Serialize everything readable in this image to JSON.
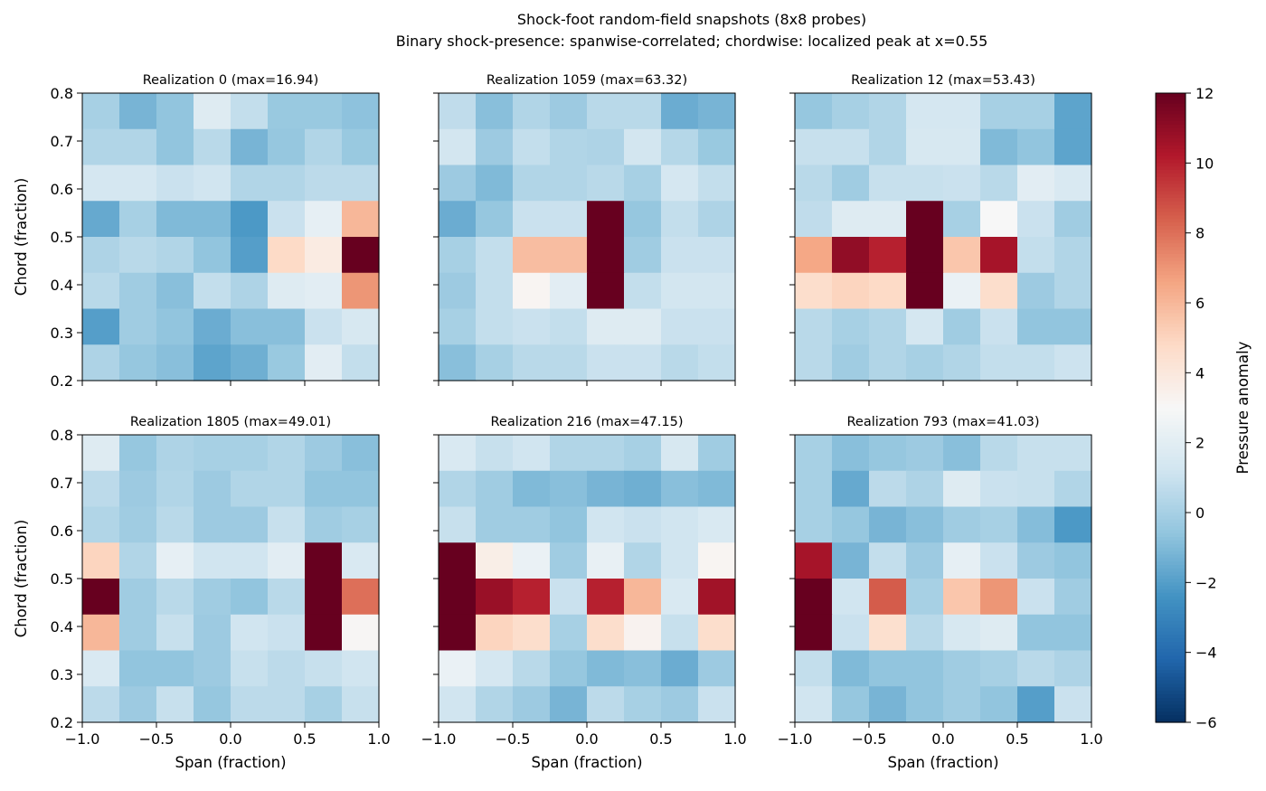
{
  "figure": {
    "title": "Shock-foot random-field snapshots (8x8 probes)",
    "subtitle": "Binary shock-presence: spanwise-correlated; chordwise: localized peak at x=0.55"
  },
  "chart_data": {
    "type": "heatmap",
    "colormap": "RdBu_r",
    "vmin": -6,
    "vmax": 12,
    "colorbar": {
      "label": "Pressure anomaly",
      "ticks": [
        -6,
        -4,
        -2,
        0,
        2,
        4,
        6,
        8,
        10,
        12
      ]
    },
    "xlim": [
      -1.0,
      1.0
    ],
    "ylim": [
      0.2,
      0.8
    ],
    "xticks": [
      -1.0,
      -0.5,
      0.0,
      0.5,
      1.0
    ],
    "yticks": [
      0.2,
      0.3,
      0.4,
      0.5,
      0.6,
      0.7,
      0.8
    ],
    "xticklabels": [
      "−1.0",
      "−0.5",
      "0.0",
      "0.5",
      "1.0"
    ],
    "yticklabels": [
      "0.2",
      "0.3",
      "0.4",
      "0.5",
      "0.6",
      "0.7",
      "0.8"
    ],
    "xlabel": "Span (fraction)",
    "ylabel": "Chord (fraction)",
    "grid_rows_top_to_bottom": true,
    "panels": [
      {
        "title": "Realization 0 (max=16.94)",
        "values": [
          [
            0.0,
            -1.2,
            -0.6,
            1.8,
            0.8,
            -0.4,
            -0.4,
            -0.7
          ],
          [
            0.3,
            0.3,
            -0.6,
            0.5,
            -1.2,
            -0.5,
            0.3,
            -0.4
          ],
          [
            1.4,
            1.4,
            1.0,
            1.2,
            0.3,
            0.3,
            0.6,
            0.6
          ],
          [
            -1.6,
            0.0,
            -1.0,
            -1.0,
            -2.2,
            1.0,
            2.2,
            6.0
          ],
          [
            0.2,
            0.5,
            0.3,
            -0.6,
            -2.0,
            4.8,
            3.8,
            16.94
          ],
          [
            0.5,
            -0.2,
            -0.8,
            0.8,
            0.2,
            1.8,
            2.0,
            7.0
          ],
          [
            -2.0,
            -0.2,
            -0.6,
            -1.5,
            -0.8,
            -0.8,
            1.0,
            1.5
          ],
          [
            0.2,
            -0.5,
            -0.8,
            -1.8,
            -1.4,
            -0.4,
            2.0,
            0.8
          ]
        ]
      },
      {
        "title": "Realization 1059 (max=63.32)",
        "values": [
          [
            0.7,
            -0.8,
            0.3,
            -0.3,
            0.5,
            0.5,
            -1.5,
            -1.2
          ],
          [
            1.3,
            -0.3,
            0.8,
            0.3,
            0.2,
            1.3,
            0.4,
            -0.4
          ],
          [
            -0.3,
            -1.0,
            0.3,
            0.3,
            0.5,
            0.0,
            1.4,
            0.8
          ],
          [
            -1.5,
            -0.5,
            1.0,
            1.0,
            63.32,
            -0.5,
            0.8,
            0.2
          ],
          [
            0.0,
            0.8,
            5.8,
            5.8,
            50.0,
            -0.2,
            1.0,
            1.0
          ],
          [
            -0.3,
            0.8,
            3.2,
            2.0,
            40.0,
            0.8,
            1.3,
            1.3
          ],
          [
            0.0,
            0.8,
            1.0,
            0.8,
            1.8,
            1.8,
            1.0,
            1.0
          ],
          [
            -0.8,
            0.0,
            0.5,
            0.5,
            1.0,
            1.0,
            0.5,
            0.8
          ]
        ]
      },
      {
        "title": "Realization 12 (max=53.43)",
        "values": [
          [
            -0.5,
            0.0,
            0.3,
            1.4,
            1.4,
            0.0,
            0.0,
            -1.8
          ],
          [
            0.9,
            0.9,
            0.3,
            1.5,
            1.5,
            -1.0,
            -0.6,
            -1.8
          ],
          [
            0.5,
            -0.2,
            0.9,
            0.9,
            1.0,
            0.5,
            2.0,
            1.6
          ],
          [
            0.7,
            1.8,
            1.8,
            53.43,
            0.0,
            3.0,
            1.0,
            -0.2
          ],
          [
            6.5,
            11.0,
            10.0,
            45.0,
            5.5,
            10.5,
            0.8,
            0.3
          ],
          [
            4.6,
            5.0,
            4.8,
            40.0,
            2.4,
            4.6,
            -0.3,
            0.3
          ],
          [
            0.5,
            0.0,
            0.3,
            1.4,
            -0.2,
            1.0,
            -0.6,
            -0.6
          ],
          [
            0.5,
            -0.2,
            0.3,
            0.0,
            0.3,
            0.8,
            0.8,
            1.1
          ]
        ]
      },
      {
        "title": "Realization 1805 (max=49.01)",
        "values": [
          [
            1.8,
            -0.5,
            0.2,
            0.0,
            0.0,
            0.3,
            -0.3,
            -0.8
          ],
          [
            0.6,
            -0.3,
            0.3,
            -0.3,
            0.3,
            0.3,
            -0.6,
            -0.6
          ],
          [
            0.3,
            -0.2,
            0.5,
            -0.3,
            -0.3,
            0.9,
            -0.2,
            0.0
          ],
          [
            5.0,
            0.3,
            2.2,
            1.2,
            1.2,
            2.0,
            49.01,
            1.6
          ],
          [
            40.0,
            -0.2,
            0.5,
            -0.2,
            -0.6,
            0.5,
            42.0,
            8.0
          ],
          [
            6.0,
            -0.2,
            0.9,
            -0.3,
            1.2,
            1.0,
            40.0,
            3.1
          ],
          [
            1.6,
            -0.6,
            -0.6,
            -0.3,
            0.9,
            0.6,
            0.9,
            1.2
          ],
          [
            0.6,
            -0.3,
            0.9,
            -0.5,
            0.6,
            0.6,
            0.0,
            0.9
          ]
        ]
      },
      {
        "title": "Realization 216 (max=47.15)",
        "values": [
          [
            1.6,
            0.9,
            1.2,
            0.3,
            0.3,
            0.0,
            1.5,
            -0.2
          ],
          [
            0.3,
            -0.2,
            -1.0,
            -0.8,
            -1.2,
            -1.4,
            -0.8,
            -1.0
          ],
          [
            0.9,
            -0.2,
            -0.2,
            -0.6,
            1.2,
            1.0,
            1.2,
            1.6
          ],
          [
            47.15,
            3.6,
            2.4,
            -0.2,
            2.3,
            0.3,
            1.2,
            3.2
          ],
          [
            40.0,
            10.8,
            10.0,
            1.0,
            10.0,
            6.0,
            1.6,
            10.6
          ],
          [
            38.0,
            5.0,
            4.6,
            0.0,
            4.6,
            3.3,
            0.9,
            4.6
          ],
          [
            2.4,
            1.4,
            0.5,
            -0.5,
            -1.0,
            -0.8,
            -1.5,
            -0.3
          ],
          [
            1.2,
            0.3,
            -0.3,
            -1.2,
            0.6,
            0.0,
            -0.3,
            1.0
          ]
        ]
      },
      {
        "title": "Realization 793 (max=41.03)",
        "values": [
          [
            0.0,
            -0.8,
            -0.5,
            -0.3,
            -0.8,
            0.5,
            0.9,
            0.9
          ],
          [
            0.0,
            -1.6,
            0.6,
            0.2,
            1.8,
            1.0,
            0.9,
            0.3
          ],
          [
            0.0,
            -0.5,
            -1.2,
            -0.8,
            -0.2,
            0.0,
            -0.9,
            -2.2
          ],
          [
            10.5,
            -1.2,
            0.8,
            -0.3,
            2.2,
            1.0,
            -0.3,
            -0.6
          ],
          [
            41.03,
            1.2,
            8.5,
            0.0,
            5.5,
            7.0,
            1.0,
            -0.2
          ],
          [
            38.0,
            1.0,
            4.5,
            0.5,
            1.5,
            1.8,
            -0.6,
            -0.6
          ],
          [
            0.8,
            -1.0,
            -0.6,
            -0.6,
            -0.2,
            0.0,
            0.5,
            0.2
          ],
          [
            1.2,
            -0.5,
            -1.2,
            -0.6,
            -0.2,
            -0.6,
            -2.0,
            1.0
          ]
        ]
      }
    ]
  }
}
